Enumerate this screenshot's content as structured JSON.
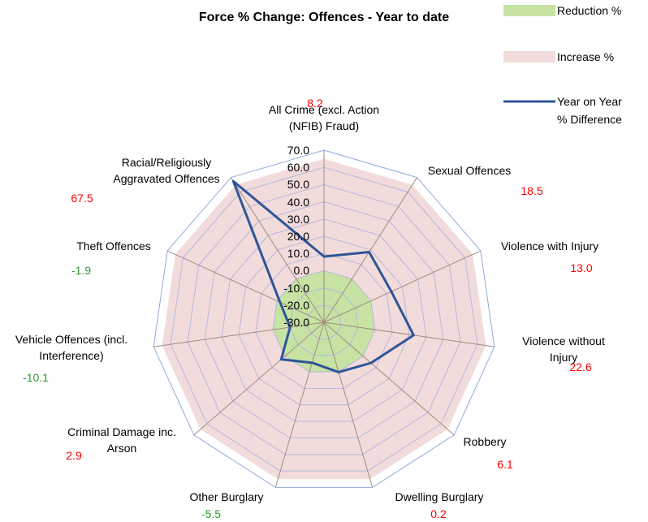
{
  "chart_data": {
    "type": "radar",
    "title": "Force % Change: Offences - Year to date",
    "categories": [
      "All Crime (excl. Action\n(NFIB) Fraud)",
      "Sexual Offences",
      "Violence with Injury",
      "Violence without Injury",
      "Robbery",
      "Dwelling Burglary",
      "Other Burglary",
      "Criminal Damage inc.\nArson",
      "Vehicle Offences (incl.\nInterference)",
      "Theft Offences",
      "Racial/Religiously\nAggravated Offences"
    ],
    "series": [
      {
        "name": "Reduction %",
        "color": "#c6e3a4",
        "kind": "area",
        "values": [
          0,
          0,
          0,
          0,
          0,
          0,
          0,
          0,
          0,
          0,
          0
        ]
      },
      {
        "name": "Increase %",
        "color": "#f2dcdb",
        "kind": "area",
        "values": [
          65,
          65,
          65,
          65,
          65,
          65,
          65,
          65,
          65,
          65,
          65
        ]
      },
      {
        "name": "Year on Year\n% Difference",
        "color": "#2f5597",
        "kind": "line",
        "values": [
          8.2,
          18.5,
          13.0,
          22.6,
          6.1,
          0.2,
          -5.5,
          2.9,
          -10.1,
          -1.9,
          67.5
        ],
        "value_labels": [
          "8.2",
          "18.5",
          "13.0",
          "22.6",
          "6.1",
          "0.2",
          "-5.5",
          "2.9",
          "-10.1",
          "-1.9",
          "67.5"
        ]
      }
    ],
    "label_colors": {
      "positive": "#ff0000",
      "negative": "#2e9a2e"
    },
    "ylim": [
      -30,
      70
    ],
    "yticks": [
      {
        "value": -30,
        "label": "-30.0"
      },
      {
        "value": -20,
        "label": "-20.0"
      },
      {
        "value": -10,
        "label": "-10.0"
      },
      {
        "value": 0,
        "label": "0.0"
      },
      {
        "value": 10,
        "label": "10.0"
      },
      {
        "value": 20,
        "label": "20.0"
      },
      {
        "value": 30,
        "label": "30.0"
      },
      {
        "value": 40,
        "label": "40.0"
      },
      {
        "value": 50,
        "label": "50.0"
      },
      {
        "value": 60,
        "label": "60.0"
      },
      {
        "value": 70,
        "label": "70.0"
      }
    ],
    "grid": true
  }
}
